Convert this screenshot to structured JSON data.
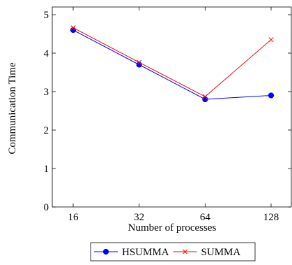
{
  "chart_data": {
    "type": "line",
    "title": "",
    "xlabel": "Number of processes",
    "ylabel": "Communication Time",
    "categories": [
      "16",
      "32",
      "64",
      "128"
    ],
    "ylim": [
      0,
      5.2
    ],
    "yticks": [
      "0",
      "1",
      "2",
      "3",
      "4",
      "5"
    ],
    "grid": false,
    "legend_position": "bottom-center",
    "series": [
      {
        "name": "HSUMMA",
        "values": [
          4.6,
          3.7,
          2.8,
          2.9
        ],
        "color": "#0000ff",
        "marker": "circle"
      },
      {
        "name": "SUMMA",
        "values": [
          4.66,
          3.76,
          2.87,
          4.35
        ],
        "color": "#ff0000",
        "marker": "x"
      }
    ]
  }
}
